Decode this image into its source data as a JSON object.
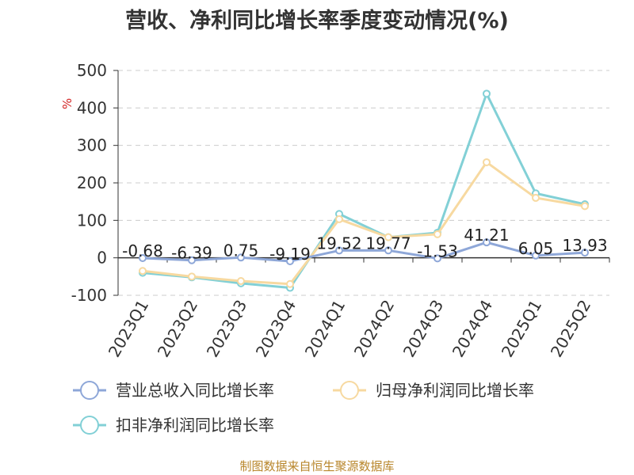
{
  "title": "营收、净利同比增长率季度变动情况(%)",
  "source": "制图数据来自恒生聚源数据库",
  "colors": {
    "revenue": "#8ea7d8",
    "net_profit": "#f7d9a0",
    "deducted_profit": "#82d0d6",
    "axis": "#333333",
    "grid": "#cccccc",
    "unit": "#d22222",
    "source": "#b8862b"
  },
  "chart_data": {
    "type": "line",
    "title": "营收、净利同比增长率季度变动情况(%)",
    "ylabel": "%",
    "ylim": [
      -100,
      500
    ],
    "yticks": [
      -100,
      0,
      100,
      200,
      300,
      400,
      500
    ],
    "ytick_labels": [
      "-100",
      "0",
      "100",
      "200",
      "300",
      "400",
      "500"
    ],
    "grid": "horizontal dashed",
    "legend_position": "bottom",
    "categories": [
      "2023Q1",
      "2023Q2",
      "2023Q3",
      "2023Q4",
      "2024Q1",
      "2024Q2",
      "2024Q3",
      "2024Q4",
      "2025Q1",
      "2025Q2"
    ],
    "series": [
      {
        "name": "营业总收入同比增长率",
        "color": "#8ea7d8",
        "values": [
          -0.68,
          -6.39,
          0.75,
          -9.19,
          19.52,
          19.77,
          -1.53,
          41.21,
          6.05,
          13.93
        ],
        "data_labels": [
          "-0.68",
          "-6.39",
          "0.75",
          "-9.19",
          "19.52",
          "19.77",
          "-1.53",
          "41.21",
          "6.05",
          "13.93"
        ]
      },
      {
        "name": "归母净利润同比增长率",
        "color": "#f7d9a0",
        "values": [
          -35,
          -50,
          -62,
          -70,
          103,
          55,
          63,
          255,
          160,
          138
        ]
      },
      {
        "name": "扣非净利润同比增长率",
        "color": "#82d0d6",
        "values": [
          -40,
          -52,
          -68,
          -80,
          117,
          55,
          67,
          438,
          172,
          143
        ]
      }
    ]
  }
}
